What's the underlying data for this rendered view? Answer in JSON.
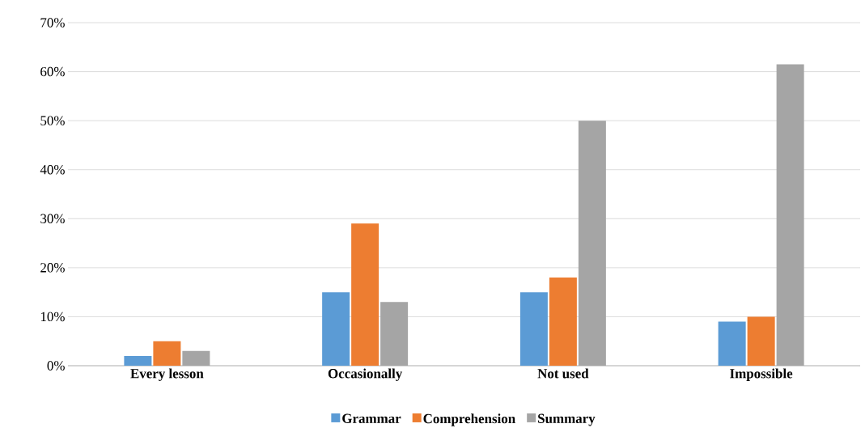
{
  "chart_data": {
    "type": "bar",
    "categories": [
      "Every lesson",
      "Occasionally",
      "Not used",
      "Impossible"
    ],
    "series": [
      {
        "name": "Grammar",
        "color": "#5b9bd5",
        "values": [
          2,
          15,
          15,
          9
        ]
      },
      {
        "name": "Comprehension",
        "color": "#ed7d31",
        "values": [
          5,
          29,
          18,
          10
        ]
      },
      {
        "name": "Summary",
        "color": "#a5a5a5",
        "values": [
          3,
          13,
          50,
          61.5
        ]
      }
    ],
    "ylim": [
      0,
      70
    ],
    "yticks": [
      {
        "value": 0,
        "label": "0%"
      },
      {
        "value": 10,
        "label": "10%"
      },
      {
        "value": 20,
        "label": "20%"
      },
      {
        "value": 30,
        "label": "30%"
      },
      {
        "value": 40,
        "label": "40%"
      },
      {
        "value": 50,
        "label": "50%"
      },
      {
        "value": 60,
        "label": "60%"
      },
      {
        "value": 70,
        "label": "70%"
      }
    ],
    "grid": "y",
    "legend": "bottom"
  }
}
